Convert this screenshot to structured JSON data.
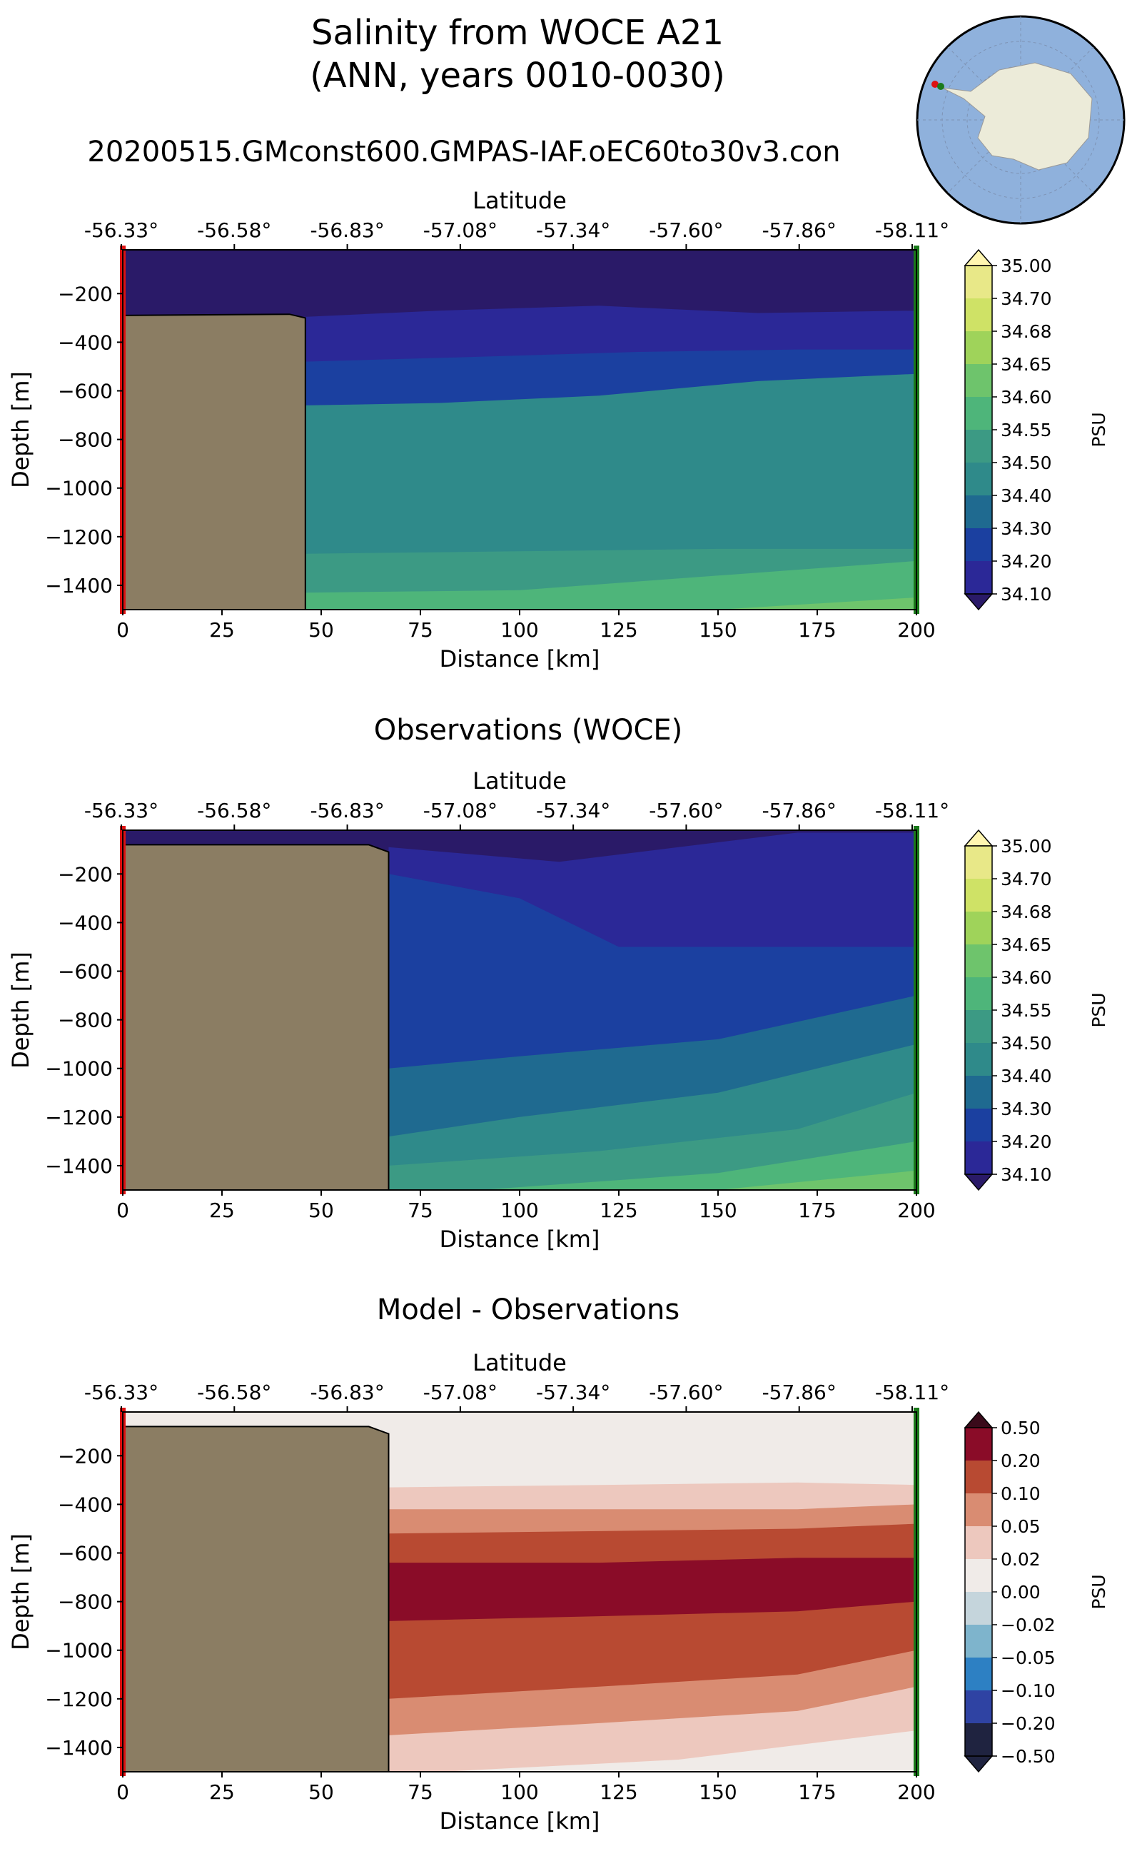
{
  "figure": {
    "title_line1": "Salinity from WOCE A21",
    "title_line2": "(ANN, years 0010-0030)",
    "subtitle": "20200515.GMconst600.GMPAS-IAF.oEC60to30v3.con"
  },
  "colors": {
    "land": "#8b7d63",
    "salinity": [
      "#2a1a68",
      "#2b2897",
      "#1b40a0",
      "#1f6a90",
      "#2f8a8a",
      "#3c9a84",
      "#4eb57a",
      "#6ec46c",
      "#9fd35a",
      "#cfe266",
      "#e8e888",
      "#fff6b0"
    ],
    "anomaly": [
      "#1f2340",
      "#2f43a3",
      "#2d80c3",
      "#7eb4cc",
      "#c5d5dc",
      "#f0ebe8",
      "#edc8be",
      "#d98c72",
      "#b84a32",
      "#8a0c28",
      "#3a0a1a"
    ]
  },
  "chart_data": [
    {
      "type": "contourf",
      "title": "",
      "xlabel": "Distance [km]",
      "ylabel": "Depth [m]",
      "top_axis_label": "Latitude",
      "xlim": [
        0,
        200
      ],
      "ylim": [
        -1500,
        -20
      ],
      "xticks": [
        "0",
        "25",
        "50",
        "75",
        "100",
        "125",
        "150",
        "175",
        "200"
      ],
      "yticks": [
        "-200",
        "-400",
        "-600",
        "-800",
        "-1000",
        "-1200",
        "-1400"
      ],
      "lat_ticks": [
        "-56.33°",
        "-56.58°",
        "-56.83°",
        "-57.08°",
        "-57.34°",
        "-57.60°",
        "-57.86°",
        "-58.11°"
      ],
      "colorbar_label": "PSU",
      "colorbar_ticks": [
        "35.00",
        "34.70",
        "34.68",
        "34.65",
        "34.60",
        "34.55",
        "34.50",
        "34.40",
        "34.30",
        "34.20",
        "34.10"
      ],
      "land_outline": [
        [
          0,
          -290
        ],
        [
          42,
          -285
        ],
        [
          46,
          -300
        ],
        [
          46,
          -1500
        ],
        [
          0,
          -1500
        ]
      ],
      "contours": [
        {
          "level": 0,
          "boundary": [
            [
              0,
              -20
            ],
            [
              200,
              -20
            ]
          ]
        },
        {
          "level": 1,
          "boundary": [
            [
              0,
              -300
            ],
            [
              40,
              -300
            ],
            [
              80,
              -270
            ],
            [
              120,
              -250
            ],
            [
              160,
              -280
            ],
            [
              200,
              -270
            ]
          ]
        },
        {
          "level": 2,
          "boundary": [
            [
              46,
              -480
            ],
            [
              90,
              -460
            ],
            [
              130,
              -440
            ],
            [
              170,
              -430
            ],
            [
              200,
              -430
            ]
          ]
        },
        {
          "level": 4,
          "boundary": [
            [
              46,
              -660
            ],
            [
              80,
              -650
            ],
            [
              120,
              -620
            ],
            [
              160,
              -560
            ],
            [
              200,
              -530
            ]
          ]
        },
        {
          "level": 5,
          "boundary": [
            [
              46,
              -1270
            ],
            [
              100,
              -1260
            ],
            [
              150,
              -1250
            ],
            [
              200,
              -1250
            ]
          ]
        },
        {
          "level": 6,
          "boundary": [
            [
              46,
              -1430
            ],
            [
              100,
              -1420
            ],
            [
              150,
              -1360
            ],
            [
              200,
              -1300
            ]
          ]
        },
        {
          "level": 7,
          "boundary": [
            [
              150,
              -1500
            ],
            [
              200,
              -1450
            ]
          ]
        }
      ]
    },
    {
      "type": "contourf",
      "title": "Observations (WOCE)",
      "xlabel": "Distance [km]",
      "ylabel": "Depth [m]",
      "top_axis_label": "Latitude",
      "xlim": [
        0,
        200
      ],
      "ylim": [
        -1500,
        -20
      ],
      "xticks": [
        "0",
        "25",
        "50",
        "75",
        "100",
        "125",
        "150",
        "175",
        "200"
      ],
      "yticks": [
        "-200",
        "-400",
        "-600",
        "-800",
        "-1000",
        "-1200",
        "-1400"
      ],
      "lat_ticks": [
        "-56.33°",
        "-56.58°",
        "-56.83°",
        "-57.08°",
        "-57.34°",
        "-57.60°",
        "-57.86°",
        "-58.11°"
      ],
      "colorbar_label": "PSU",
      "colorbar_ticks": [
        "35.00",
        "34.70",
        "34.68",
        "34.65",
        "34.60",
        "34.55",
        "34.50",
        "34.40",
        "34.30",
        "34.20",
        "34.10"
      ],
      "land_outline": [
        [
          0,
          -80
        ],
        [
          62,
          -80
        ],
        [
          67,
          -110
        ],
        [
          67,
          -1500
        ],
        [
          0,
          -1500
        ]
      ],
      "contours": [
        {
          "level": 0,
          "boundary": [
            [
              0,
              -20
            ],
            [
              200,
              -20
            ]
          ]
        },
        {
          "level": 1,
          "boundary": [
            [
              67,
              -90
            ],
            [
              110,
              -150
            ],
            [
              140,
              -90
            ],
            [
              170,
              -30
            ],
            [
              200,
              -30
            ]
          ]
        },
        {
          "level": 2,
          "boundary": [
            [
              67,
              -200
            ],
            [
              100,
              -300
            ],
            [
              125,
              -500
            ],
            [
              200,
              -500
            ]
          ]
        },
        {
          "level": 3,
          "boundary": [
            [
              67,
              -1000
            ],
            [
              100,
              -950
            ],
            [
              150,
              -880
            ],
            [
              200,
              -700
            ]
          ]
        },
        {
          "level": 4,
          "boundary": [
            [
              67,
              -1280
            ],
            [
              100,
              -1200
            ],
            [
              150,
              -1100
            ],
            [
              200,
              -900
            ]
          ]
        },
        {
          "level": 5,
          "boundary": [
            [
              67,
              -1400
            ],
            [
              120,
              -1340
            ],
            [
              170,
              -1250
            ],
            [
              200,
              -1100
            ]
          ]
        },
        {
          "level": 6,
          "boundary": [
            [
              90,
              -1500
            ],
            [
              150,
              -1430
            ],
            [
              200,
              -1300
            ]
          ]
        },
        {
          "level": 7,
          "boundary": [
            [
              150,
              -1500
            ],
            [
              200,
              -1420
            ]
          ]
        }
      ]
    },
    {
      "type": "contourf",
      "title": "Model - Observations",
      "xlabel": "Distance [km]",
      "ylabel": "Depth [m]",
      "top_axis_label": "Latitude",
      "xlim": [
        0,
        200
      ],
      "ylim": [
        -1500,
        -20
      ],
      "xticks": [
        "0",
        "25",
        "50",
        "75",
        "100",
        "125",
        "150",
        "175",
        "200"
      ],
      "yticks": [
        "-200",
        "-400",
        "-600",
        "-800",
        "-1000",
        "-1200",
        "-1400"
      ],
      "lat_ticks": [
        "-56.33°",
        "-56.58°",
        "-56.83°",
        "-57.08°",
        "-57.34°",
        "-57.60°",
        "-57.86°",
        "-58.11°"
      ],
      "colorbar_label": "PSU",
      "colorbar_ticks": [
        "0.50",
        "0.20",
        "0.10",
        "0.05",
        "0.02",
        "0.00",
        "−0.02",
        "−0.05",
        "−0.10",
        "−0.20",
        "−0.50"
      ],
      "land_outline": [
        [
          0,
          -80
        ],
        [
          62,
          -80
        ],
        [
          67,
          -110
        ],
        [
          67,
          -1500
        ],
        [
          0,
          -1500
        ]
      ],
      "contours": [
        {
          "level": 5,
          "boundary": [
            [
              0,
              -20
            ],
            [
              200,
              -20
            ]
          ]
        },
        {
          "level": 6,
          "boundary": [
            [
              67,
              -330
            ],
            [
              120,
              -320
            ],
            [
              170,
              -310
            ],
            [
              200,
              -320
            ]
          ]
        },
        {
          "level": 7,
          "boundary": [
            [
              67,
              -420
            ],
            [
              120,
              -420
            ],
            [
              170,
              -420
            ],
            [
              200,
              -400
            ]
          ]
        },
        {
          "level": 8,
          "boundary": [
            [
              67,
              -520
            ],
            [
              120,
              -510
            ],
            [
              170,
              -500
            ],
            [
              200,
              -480
            ]
          ]
        },
        {
          "level": 9,
          "boundary": [
            [
              67,
              -640
            ],
            [
              120,
              -640
            ],
            [
              170,
              -620
            ],
            [
              200,
              -620
            ]
          ]
        },
        {
          "level": 8,
          "boundary": [
            [
              67,
              -880
            ],
            [
              120,
              -860
            ],
            [
              170,
              -840
            ],
            [
              200,
              -800
            ]
          ]
        },
        {
          "level": 7,
          "boundary": [
            [
              67,
              -1200
            ],
            [
              120,
              -1150
            ],
            [
              170,
              -1100
            ],
            [
              200,
              -1000
            ]
          ]
        },
        {
          "level": 6,
          "boundary": [
            [
              67,
              -1350
            ],
            [
              120,
              -1300
            ],
            [
              170,
              -1250
            ],
            [
              200,
              -1150
            ]
          ]
        },
        {
          "level": 5,
          "boundary": [
            [
              80,
              -1500
            ],
            [
              140,
              -1450
            ],
            [
              200,
              -1330
            ]
          ]
        }
      ]
    }
  ]
}
